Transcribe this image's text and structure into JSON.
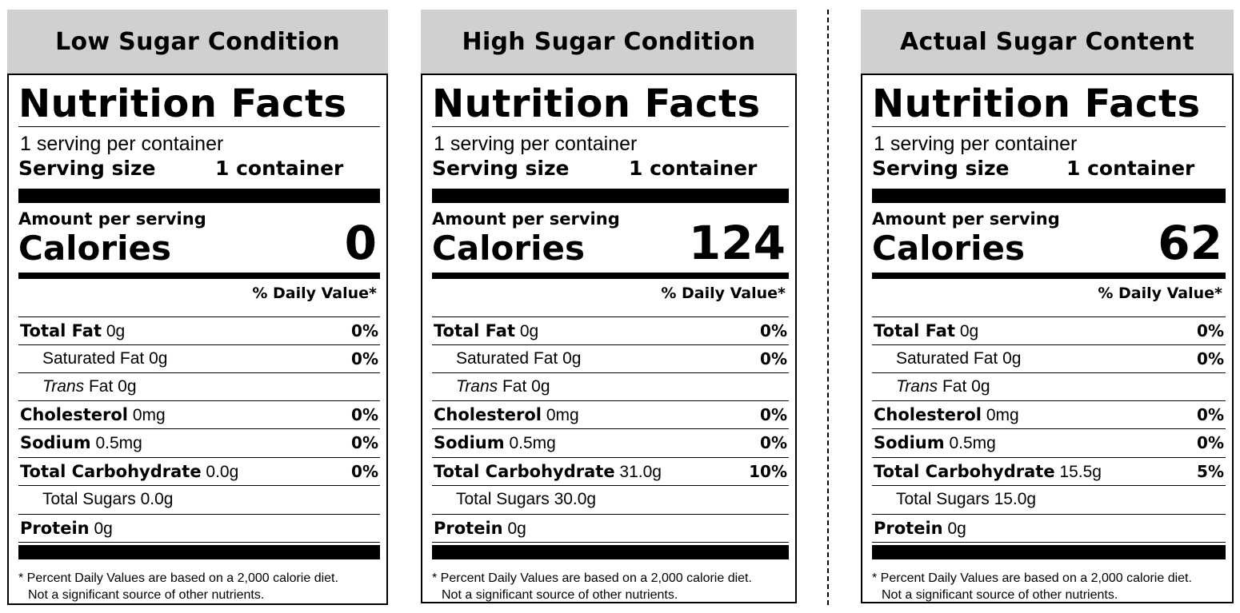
{
  "panels": [
    {
      "condition": "Low Sugar Condition",
      "nf_title": "Nutrition Facts",
      "servings_per_container": "1 serving per container",
      "serving_size_label": "Serving size",
      "serving_size_value": "1 container",
      "amount_per_serving": "Amount per serving",
      "calories_label": "Calories",
      "calories_value": "0",
      "daily_value_header": "% Daily Value*",
      "nutrients": [
        {
          "bold": "Total Fat",
          "amount": " 0g",
          "italic": "",
          "pct": "0%"
        },
        {
          "bold": "",
          "amount": "Saturated Fat 0g",
          "italic": "",
          "pct": "0%"
        },
        {
          "bold": "",
          "amount": " Fat 0g",
          "italic": "Trans",
          "pct": ""
        },
        {
          "bold": "Cholesterol",
          "amount": " 0mg",
          "italic": "",
          "pct": "0%"
        },
        {
          "bold": "Sodium",
          "amount": " 0.5mg",
          "italic": "",
          "pct": "0%"
        },
        {
          "bold": "Total Carbohydrate",
          "amount": " 0.0g",
          "italic": "",
          "pct": "0%"
        },
        {
          "bold": "",
          "amount": "Total Sugars 0.0g",
          "italic": "",
          "pct": ""
        },
        {
          "bold": "Protein",
          "amount": " 0g",
          "italic": "",
          "pct": ""
        }
      ],
      "footnote_1": "* Percent Daily Values are based on a 2,000 calorie diet.",
      "footnote_2": "Not a significant source of other nutrients."
    },
    {
      "condition": "High Sugar Condition",
      "nf_title": "Nutrition Facts",
      "servings_per_container": "1 serving per container",
      "serving_size_label": "Serving size",
      "serving_size_value": "1 container",
      "amount_per_serving": "Amount per serving",
      "calories_label": "Calories",
      "calories_value": "124",
      "daily_value_header": "% Daily Value*",
      "nutrients": [
        {
          "bold": "Total Fat",
          "amount": " 0g",
          "italic": "",
          "pct": "0%"
        },
        {
          "bold": "",
          "amount": "Saturated Fat 0g",
          "italic": "",
          "pct": "0%"
        },
        {
          "bold": "",
          "amount": " Fat 0g",
          "italic": "Trans",
          "pct": ""
        },
        {
          "bold": "Cholesterol",
          "amount": " 0mg",
          "italic": "",
          "pct": "0%"
        },
        {
          "bold": "Sodium",
          "amount": " 0.5mg",
          "italic": "",
          "pct": "0%"
        },
        {
          "bold": "Total Carbohydrate",
          "amount": " 31.0g",
          "italic": "",
          "pct": "10%"
        },
        {
          "bold": "",
          "amount": "Total Sugars 30.0g",
          "italic": "",
          "pct": ""
        },
        {
          "bold": "Protein",
          "amount": " 0g",
          "italic": "",
          "pct": ""
        }
      ],
      "footnote_1": "* Percent Daily Values are based on a 2,000 calorie diet.",
      "footnote_2": "Not a significant source of other nutrients."
    },
    {
      "condition": "Actual Sugar Content",
      "nf_title": "Nutrition Facts",
      "servings_per_container": "1 serving per container",
      "serving_size_label": "Serving size",
      "serving_size_value": "1 container",
      "amount_per_serving": "Amount per serving",
      "calories_label": "Calories",
      "calories_value": "62",
      "daily_value_header": "% Daily Value*",
      "nutrients": [
        {
          "bold": "Total Fat",
          "amount": " 0g",
          "italic": "",
          "pct": "0%"
        },
        {
          "bold": "",
          "amount": "Saturated Fat 0g",
          "italic": "",
          "pct": "0%"
        },
        {
          "bold": "",
          "amount": " Fat 0g",
          "italic": "Trans",
          "pct": ""
        },
        {
          "bold": "Cholesterol",
          "amount": " 0mg",
          "italic": "",
          "pct": "0%"
        },
        {
          "bold": "Sodium",
          "amount": " 0.5mg",
          "italic": "",
          "pct": "0%"
        },
        {
          "bold": "Total Carbohydrate",
          "amount": " 15.5g",
          "italic": "",
          "pct": "5%"
        },
        {
          "bold": "",
          "amount": "Total Sugars 15.0g",
          "italic": "",
          "pct": ""
        },
        {
          "bold": "Protein",
          "amount": " 0g",
          "italic": "",
          "pct": ""
        }
      ],
      "footnote_1": "* Percent Daily Values are based on a 2,000 calorie diet.",
      "footnote_2": "Not a significant source of other nutrients."
    }
  ]
}
